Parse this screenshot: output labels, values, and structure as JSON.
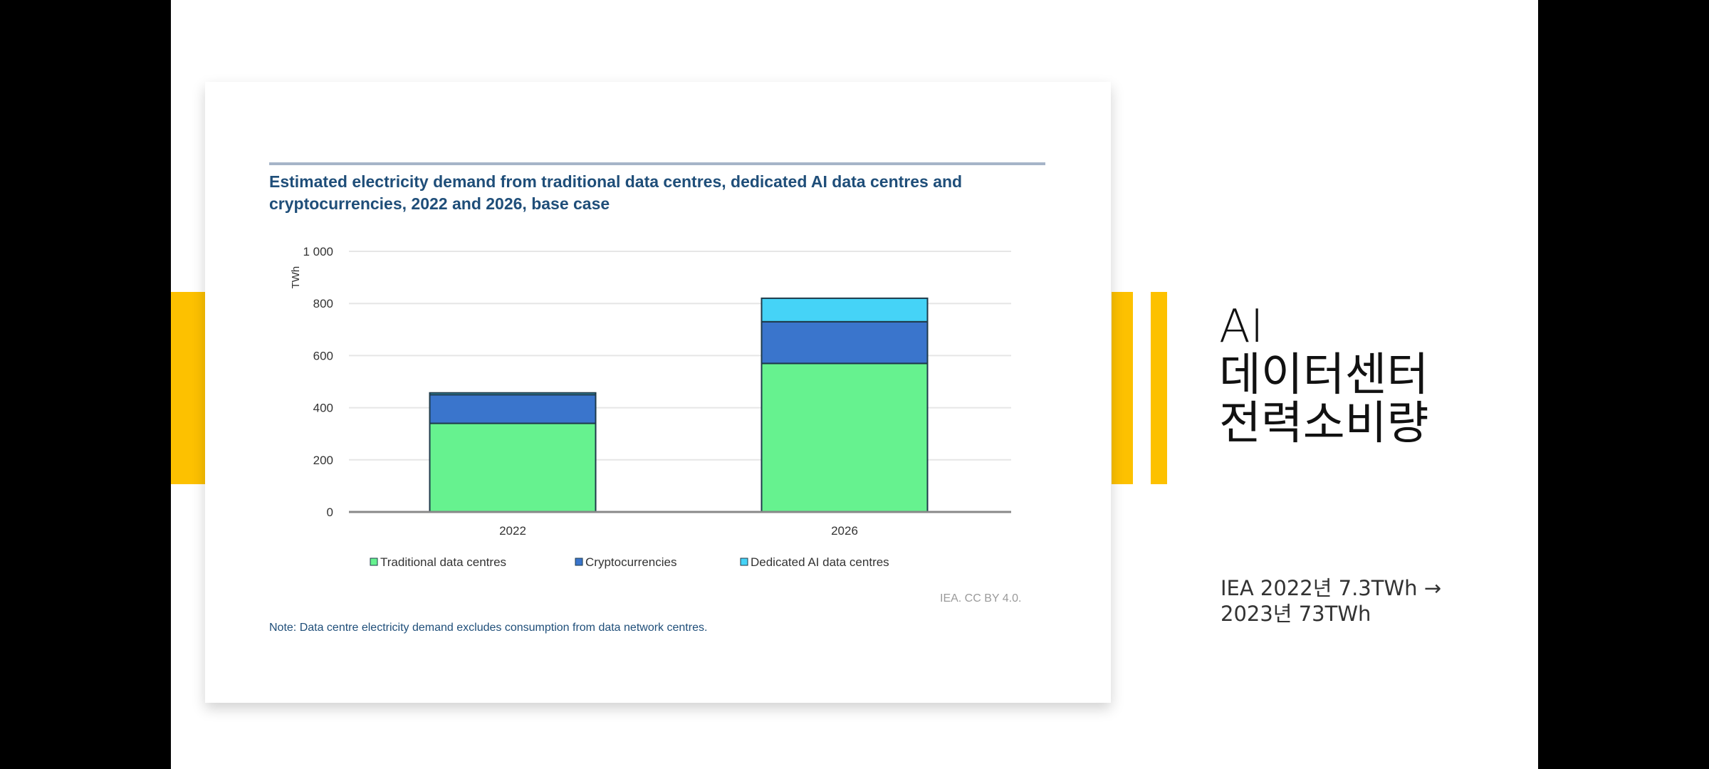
{
  "slide": {
    "heading_lines": [
      "AI",
      "데이터센터",
      "전력소비량"
    ],
    "subtext_lines": [
      "IEA 2022년 7.3TWh →",
      "2023년 73TWh"
    ],
    "accent_color": "#fdc100"
  },
  "chart_data": {
    "type": "bar",
    "stacked": true,
    "title": "Estimated electricity demand from traditional data centres, dedicated AI data centres and cryptocurrencies, 2022 and 2026, base case",
    "ylabel": "TWh",
    "xlabel": "",
    "ylim": [
      0,
      1000
    ],
    "yticks": [
      0,
      200,
      400,
      600,
      800,
      1000
    ],
    "ytick_labels": [
      "0",
      "200",
      "400",
      "600",
      "800",
      "1 000"
    ],
    "categories": [
      "2022",
      "2026"
    ],
    "series": [
      {
        "name": "Traditional data centres",
        "color": "#66f28f",
        "values": [
          340,
          570
        ]
      },
      {
        "name": "Cryptocurrencies",
        "color": "#3a75cc",
        "values": [
          110,
          160
        ]
      },
      {
        "name": "Dedicated AI data centres",
        "color": "#45d3f7",
        "values": [
          7,
          90
        ]
      }
    ],
    "grid": true,
    "legend_position": "bottom",
    "source": "IEA. CC BY 4.0.",
    "note": "Note: Data centre electricity demand excludes consumption from data network centres."
  }
}
